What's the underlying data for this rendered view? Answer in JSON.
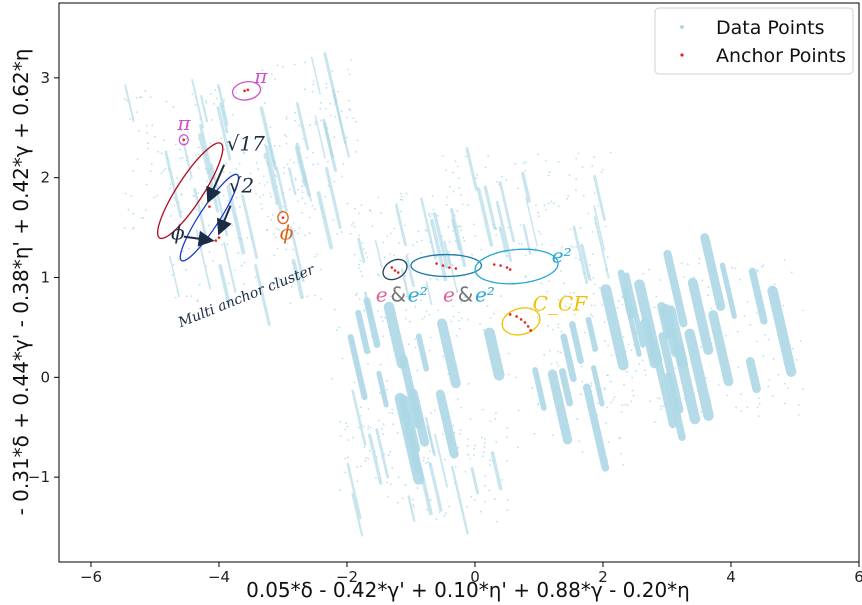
{
  "chart_data": {
    "type": "scatter",
    "xlabel": "0.05*δ - 0.42*γ' + 0.10*η' + 0.88*γ - 0.20*η",
    "ylabel": "- 0.31*δ + 0.44*γ' - 0.38*η' + 0.42*γ + 0.62*η",
    "xlim": [
      -6.5,
      6.0
    ],
    "ylim": [
      -1.85,
      3.75
    ],
    "x_ticks": [
      "−6",
      "−4",
      "−2",
      "0",
      "2",
      "4",
      "6"
    ],
    "x_tick_values": [
      -6,
      -4,
      -2,
      0,
      2,
      4,
      6
    ],
    "y_ticks": [
      "−1",
      "0",
      "1",
      "2",
      "3"
    ],
    "y_tick_values": [
      -1,
      0,
      1,
      2,
      3
    ],
    "legend": {
      "placement": "top-right",
      "entries": [
        "Data Points",
        "Anchor Points"
      ]
    },
    "colors": {
      "data_points": "#add8e6",
      "anchor_points": "#e8231c"
    },
    "series": [
      {
        "name": "Data Points",
        "clusters": [
          {
            "cx": -4.6,
            "cy": 2.2,
            "w": 1.6,
            "h": 1.3,
            "density": "sparse"
          },
          {
            "cx": -3.6,
            "cy": 1.6,
            "w": 2.2,
            "h": 1.6,
            "density": "sparse"
          },
          {
            "cx": -2.6,
            "cy": 2.3,
            "w": 1.4,
            "h": 1.6,
            "density": "sparse"
          },
          {
            "cx": -1.0,
            "cy": 1.2,
            "w": 1.6,
            "h": 1.2,
            "density": "sparse"
          },
          {
            "cx": 0.8,
            "cy": 1.6,
            "w": 2.4,
            "h": 1.2,
            "density": "sparse"
          },
          {
            "cx": 0.4,
            "cy": 0.0,
            "w": 4.8,
            "h": 1.6,
            "density": "dense"
          },
          {
            "cx": 3.2,
            "cy": 0.4,
            "w": 3.6,
            "h": 1.5,
            "density": "dense"
          },
          {
            "cx": -0.8,
            "cy": -0.9,
            "w": 2.4,
            "h": 1.0,
            "density": "sparse"
          }
        ]
      },
      {
        "name": "Anchor Points",
        "points": [
          [
            -3.6,
            2.87
          ],
          [
            -3.55,
            2.88
          ],
          [
            -4.55,
            2.38
          ],
          [
            -3.0,
            1.6
          ],
          [
            -4.15,
            1.71
          ],
          [
            -4.0,
            1.4
          ],
          [
            -4.05,
            1.37
          ],
          [
            -1.3,
            1.1
          ],
          [
            -1.25,
            1.07
          ],
          [
            -1.2,
            1.05
          ],
          [
            -0.6,
            1.14
          ],
          [
            -0.5,
            1.12
          ],
          [
            -0.4,
            1.1
          ],
          [
            -0.3,
            1.09
          ],
          [
            0.3,
            1.13
          ],
          [
            0.4,
            1.12
          ],
          [
            0.5,
            1.1
          ],
          [
            0.55,
            1.08
          ],
          [
            0.55,
            0.63
          ],
          [
            0.65,
            0.61
          ],
          [
            0.72,
            0.58
          ],
          [
            0.78,
            0.55
          ],
          [
            0.83,
            0.51
          ],
          [
            0.87,
            0.47
          ]
        ]
      }
    ],
    "annotations": [
      {
        "text": "π",
        "x": -3.45,
        "y": 2.95,
        "color": "#cc55cc"
      },
      {
        "text": "π",
        "x": -4.65,
        "y": 2.48,
        "color": "#cc55cc"
      },
      {
        "text": "√17",
        "x": -3.88,
        "y": 2.27,
        "color": "#1c2c44"
      },
      {
        "text": "√2",
        "x": -3.85,
        "y": 1.85,
        "color": "#1c2c44"
      },
      {
        "text": "ϕ",
        "x": -4.75,
        "y": 1.38,
        "color": "#1c2c44"
      },
      {
        "text": "ϕ",
        "x": -3.05,
        "y": 1.38,
        "color": "#d9651c"
      },
      {
        "text": "Multi anchor cluster",
        "x": -4.6,
        "y": 0.5,
        "color": "#1c2c44",
        "rotate": -22
      },
      {
        "text": "e",
        "x": -1.55,
        "y": 0.76,
        "color": "#e0609a"
      },
      {
        "text": "&",
        "x": -1.32,
        "y": 0.76,
        "color": "#777777"
      },
      {
        "text": "e²",
        "x": -1.05,
        "y": 0.76,
        "color": "#2aa7d6"
      },
      {
        "text": "e",
        "x": -0.5,
        "y": 0.76,
        "color": "#e0609a"
      },
      {
        "text": "&",
        "x": -0.27,
        "y": 0.76,
        "color": "#777777"
      },
      {
        "text": "e²",
        "x": 0.0,
        "y": 0.76,
        "color": "#2aa7d6"
      },
      {
        "text": "e²",
        "x": 1.2,
        "y": 1.15,
        "color": "#2aa7d6"
      },
      {
        "text": "C_CF",
        "x": 0.9,
        "y": 0.67,
        "color": "#f0c000"
      }
    ]
  }
}
